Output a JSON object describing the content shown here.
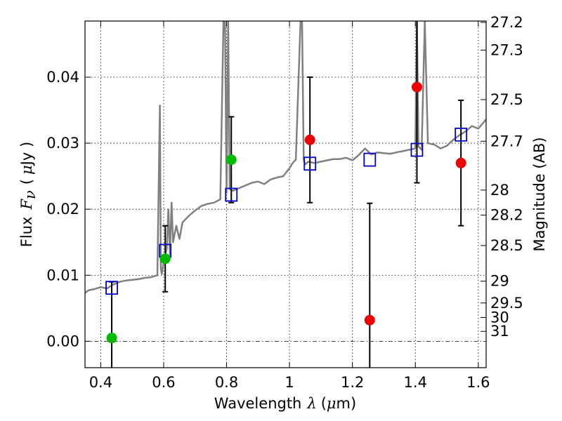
{
  "chart_data": {
    "type": "scatter",
    "xlabel": "Wavelength",
    "xlabel_symbol": "λ",
    "xlabel_unit_prefix": "(",
    "xlabel_unit_mu": "μ",
    "xlabel_unit_suffix": "m)",
    "ylabel_left": "Flux",
    "ylabel_left_symbol": "F",
    "ylabel_left_symbol_sub": "ν",
    "ylabel_left_unit_prefix": "(",
    "ylabel_left_unit_mu": "μ",
    "ylabel_left_unit_suffix": "Jy )",
    "ylabel_right": "Magnitude (AB)",
    "xlim": [
      0.35,
      1.625
    ],
    "ylim": [
      -0.004,
      0.0485
    ],
    "grid": true,
    "x_ticks": [
      0.4,
      0.6,
      0.8,
      1.0,
      1.2,
      1.4,
      1.6
    ],
    "x_tick_labels": [
      "0.4",
      "0.6",
      "0.8",
      "1",
      "1.2",
      "1.4",
      "1.6"
    ],
    "y_ticks": [
      0.0,
      0.01,
      0.02,
      0.03,
      0.04
    ],
    "y_tick_labels": [
      "0.00",
      "0.01",
      "0.02",
      "0.03",
      "0.04"
    ],
    "right_ticks": [
      {
        "flux": 0.0483,
        "label": "27.2"
      },
      {
        "flux": 0.0441,
        "label": "27.3"
      },
      {
        "flux": 0.0366,
        "label": "27.5"
      },
      {
        "flux": 0.0303,
        "label": "27.7"
      },
      {
        "flux": 0.0229,
        "label": "28"
      },
      {
        "flux": 0.0191,
        "label": "28.2"
      },
      {
        "flux": 0.0145,
        "label": "28.5"
      },
      {
        "flux": 0.0091,
        "label": "29"
      },
      {
        "flux": 0.0058,
        "label": "29.5"
      },
      {
        "flux": 0.0036,
        "label": "30"
      },
      {
        "flux": 0.0015,
        "label": "31"
      }
    ],
    "model_spectrum": {
      "color": "#808080",
      "x": [
        0.35,
        0.36,
        0.38,
        0.4,
        0.42,
        0.44,
        0.46,
        0.48,
        0.5,
        0.52,
        0.54,
        0.56,
        0.58,
        0.588,
        0.591,
        0.594,
        0.6,
        0.61,
        0.615,
        0.62,
        0.625,
        0.63,
        0.64,
        0.65,
        0.66,
        0.68,
        0.7,
        0.72,
        0.74,
        0.76,
        0.78,
        0.79,
        0.795,
        0.8,
        0.805,
        0.81,
        0.82,
        0.84,
        0.86,
        0.88,
        0.9,
        0.92,
        0.94,
        0.96,
        0.98,
        1.0,
        1.01,
        1.02,
        1.035,
        1.04,
        1.045,
        1.05,
        1.06,
        1.08,
        1.1,
        1.12,
        1.14,
        1.16,
        1.18,
        1.2,
        1.22,
        1.24,
        1.26,
        1.28,
        1.3,
        1.32,
        1.34,
        1.36,
        1.38,
        1.4,
        1.405,
        1.41,
        1.42,
        1.43,
        1.44,
        1.46,
        1.48,
        1.5,
        1.52,
        1.54,
        1.56,
        1.58,
        1.6,
        1.625
      ],
      "y": [
        0.0073,
        0.0077,
        0.0079,
        0.0082,
        0.008,
        0.0086,
        0.009,
        0.0092,
        0.0093,
        0.0094,
        0.0096,
        0.0097,
        0.01,
        0.0357,
        0.011,
        0.0102,
        0.012,
        0.014,
        0.02,
        0.013,
        0.021,
        0.015,
        0.0175,
        0.0155,
        0.018,
        0.019,
        0.0198,
        0.0205,
        0.0208,
        0.021,
        0.0215,
        0.0485,
        0.0485,
        0.0225,
        0.0485,
        0.023,
        0.0228,
        0.0232,
        0.0236,
        0.024,
        0.0242,
        0.0238,
        0.0245,
        0.0248,
        0.025,
        0.0262,
        0.027,
        0.0275,
        0.0485,
        0.0485,
        0.0275,
        0.0268,
        0.0272,
        0.027,
        0.0272,
        0.0274,
        0.0276,
        0.0276,
        0.0278,
        0.0274,
        0.0282,
        0.0292,
        0.0283,
        0.0286,
        0.0285,
        0.0284,
        0.0286,
        0.0288,
        0.029,
        0.0292,
        0.0485,
        0.0295,
        0.029,
        0.0485,
        0.03,
        0.0298,
        0.0292,
        0.0296,
        0.0305,
        0.0312,
        0.0318,
        0.0326,
        0.0322,
        0.0336
      ]
    },
    "model_photometry": {
      "color": "#0000cc",
      "marker": "open-square",
      "x": [
        0.435,
        0.605,
        0.815,
        1.065,
        1.255,
        1.405,
        1.545
      ],
      "y": [
        0.0081,
        0.0137,
        0.0222,
        0.0269,
        0.0275,
        0.029,
        0.0313
      ]
    },
    "observed_photometry": [
      {
        "x": 0.435,
        "y": 0.0005,
        "err_low": 0.0085,
        "err_high": 0.0085,
        "color": "#00bb00"
      },
      {
        "x": 0.605,
        "y": 0.0125,
        "err_low": 0.005,
        "err_high": 0.005,
        "color": "#00bb00"
      },
      {
        "x": 0.815,
        "y": 0.0275,
        "err_low": 0.0065,
        "err_high": 0.0065,
        "color": "#00bb00"
      },
      {
        "x": 1.065,
        "y": 0.0305,
        "err_low": 0.0095,
        "err_high": 0.0095,
        "color": "#ee0000"
      },
      {
        "x": 1.255,
        "y": 0.0032,
        "err_low": 0.012,
        "err_high": 0.0177,
        "color": "#ee0000"
      },
      {
        "x": 1.405,
        "y": 0.0385,
        "err_low": 0.0145,
        "err_high": 0.0145,
        "color": "#ee0000"
      },
      {
        "x": 1.545,
        "y": 0.027,
        "err_low": 0.0095,
        "err_high": 0.0095,
        "color": "#ee0000"
      }
    ]
  }
}
